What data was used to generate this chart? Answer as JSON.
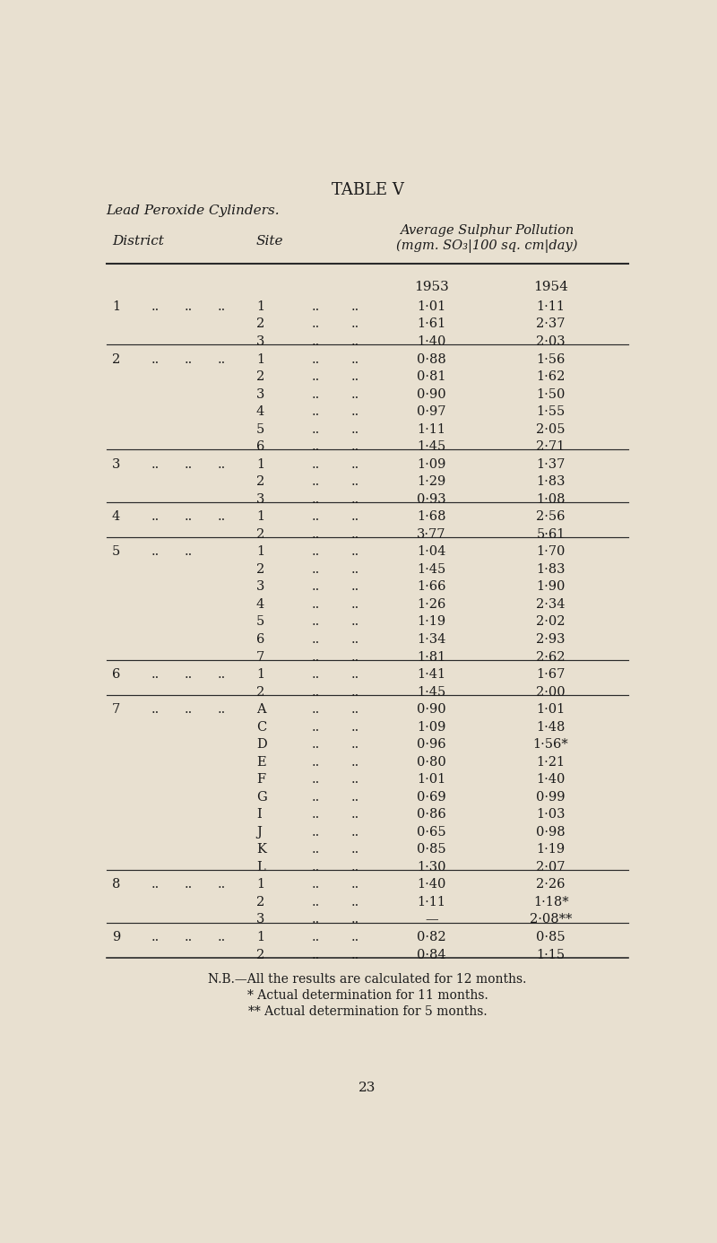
{
  "title": "TABLE V",
  "subtitle": "Lead Peroxide Cylinders.",
  "col_header_line1": "Average Sulphur Pollution",
  "col_header_line2": "(mgm. SO₃|100 sq. cm|day)",
  "col_district": "District",
  "col_site": "Site",
  "year1": "1953",
  "year2": "1954",
  "rows": [
    {
      "district": "1",
      "site": "1",
      "v1953": "1·01",
      "v1954": "1·11"
    },
    {
      "district": "",
      "site": "2",
      "v1953": "1·61",
      "v1954": "2·37"
    },
    {
      "district": "",
      "site": "3",
      "v1953": "1·40",
      "v1954": "2·03"
    },
    {
      "district": "2",
      "site": "1",
      "v1953": "0·88",
      "v1954": "1·56"
    },
    {
      "district": "",
      "site": "2",
      "v1953": "0·81",
      "v1954": "1·62"
    },
    {
      "district": "",
      "site": "3",
      "v1953": "0·90",
      "v1954": "1·50"
    },
    {
      "district": "",
      "site": "4",
      "v1953": "0·97",
      "v1954": "1·55"
    },
    {
      "district": "",
      "site": "5",
      "v1953": "1·11",
      "v1954": "2·05"
    },
    {
      "district": "",
      "site": "6",
      "v1953": "1·45",
      "v1954": "2·71"
    },
    {
      "district": "3",
      "site": "1",
      "v1953": "1·09",
      "v1954": "1·37"
    },
    {
      "district": "",
      "site": "2",
      "v1953": "1·29",
      "v1954": "1·83"
    },
    {
      "district": "",
      "site": "3",
      "v1953": "0·93",
      "v1954": "1·08"
    },
    {
      "district": "4",
      "site": "1",
      "v1953": "1·68",
      "v1954": "2·56"
    },
    {
      "district": "",
      "site": "2",
      "v1953": "3·77",
      "v1954": "5·61"
    },
    {
      "district": "5",
      "site": "1",
      "v1953": "1·04",
      "v1954": "1·70"
    },
    {
      "district": "",
      "site": "2",
      "v1953": "1·45",
      "v1954": "1·83"
    },
    {
      "district": "",
      "site": "3",
      "v1953": "1·66",
      "v1954": "1·90"
    },
    {
      "district": "",
      "site": "4",
      "v1953": "1·26",
      "v1954": "2·34"
    },
    {
      "district": "",
      "site": "5",
      "v1953": "1·19",
      "v1954": "2·02"
    },
    {
      "district": "",
      "site": "6",
      "v1953": "1·34",
      "v1954": "2·93"
    },
    {
      "district": "",
      "site": "7",
      "v1953": "1·81",
      "v1954": "2·62"
    },
    {
      "district": "6",
      "site": "1",
      "v1953": "1·41",
      "v1954": "1·67"
    },
    {
      "district": "",
      "site": "2",
      "v1953": "1·45",
      "v1954": "2·00"
    },
    {
      "district": "7",
      "site": "A",
      "v1953": "0·90",
      "v1954": "1·01"
    },
    {
      "district": "",
      "site": "C",
      "v1953": "1·09",
      "v1954": "1·48"
    },
    {
      "district": "",
      "site": "D",
      "v1953": "0·96",
      "v1954": "1·56*"
    },
    {
      "district": "",
      "site": "E",
      "v1953": "0·80",
      "v1954": "1·21"
    },
    {
      "district": "",
      "site": "F",
      "v1953": "1·01",
      "v1954": "1·40"
    },
    {
      "district": "",
      "site": "G",
      "v1953": "0·69",
      "v1954": "0·99"
    },
    {
      "district": "",
      "site": "I",
      "v1953": "0·86",
      "v1954": "1·03"
    },
    {
      "district": "",
      "site": "J",
      "v1953": "0·65",
      "v1954": "0·98"
    },
    {
      "district": "",
      "site": "K",
      "v1953": "0·85",
      "v1954": "1·19"
    },
    {
      "district": "",
      "site": "L",
      "v1953": "1·30",
      "v1954": "2·07"
    },
    {
      "district": "8",
      "site": "1",
      "v1953": "1·40",
      "v1954": "2·26"
    },
    {
      "district": "",
      "site": "2",
      "v1953": "1·11",
      "v1954": "1·18*"
    },
    {
      "district": "",
      "site": "3",
      "v1953": "—",
      "v1954": "2·08**"
    },
    {
      "district": "9",
      "site": "1",
      "v1953": "0·82",
      "v1954": "0·85"
    },
    {
      "district": "",
      "site": "2",
      "v1953": "0·84",
      "v1954": "1·15"
    }
  ],
  "group_separators_after": [
    2,
    8,
    11,
    13,
    20,
    22,
    32,
    35
  ],
  "footnote1": "N.B.—All the results are calculated for 12 months.",
  "footnote2": "* Actual determination for 11 months.",
  "footnote3": "** Actual determination for 5 months.",
  "page_number": "23",
  "bg_color": "#e8e0d0",
  "text_color": "#1a1a1a",
  "line_color": "#2a2a2a"
}
